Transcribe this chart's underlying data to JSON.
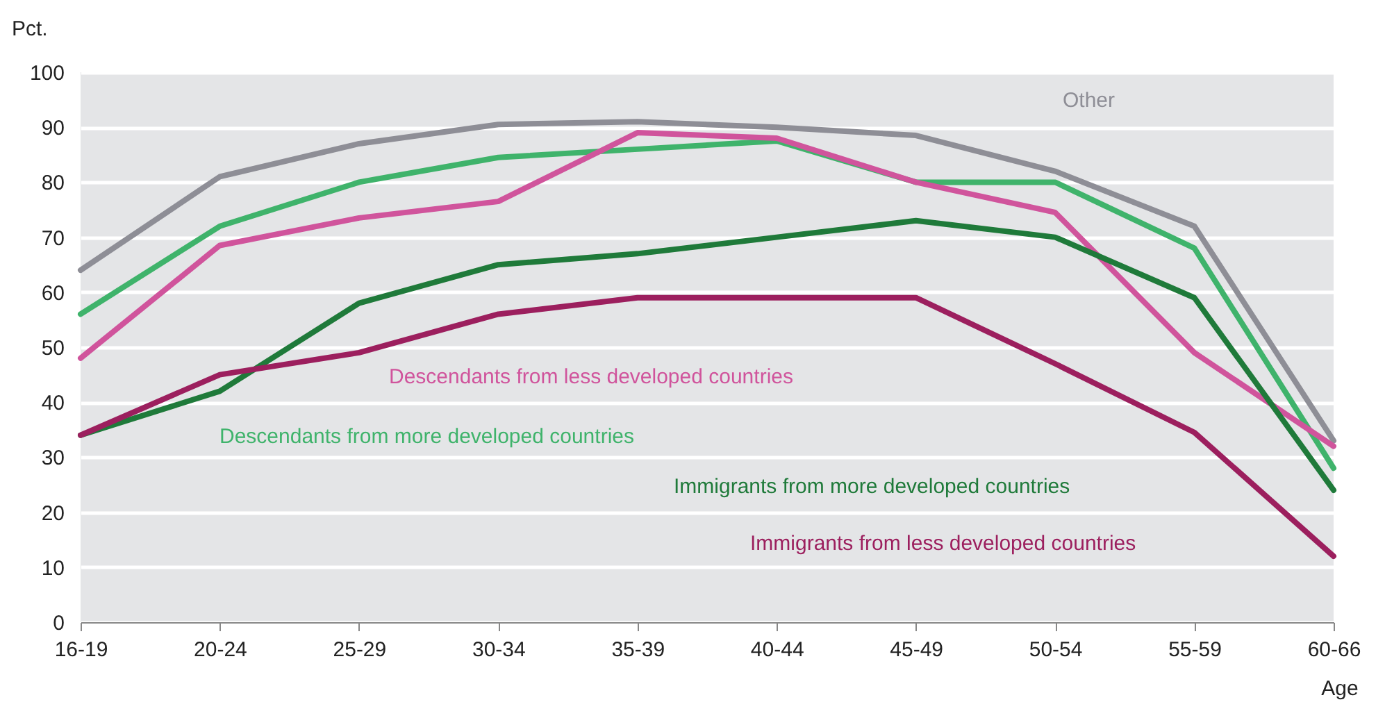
{
  "chart_data": {
    "type": "line",
    "ylabel": "Pct.",
    "xlabel": "Age",
    "categories": [
      "16-19",
      "20-24",
      "25-29",
      "30-34",
      "35-39",
      "40-44",
      "45-49",
      "50-54",
      "55-59",
      "60-66"
    ],
    "ylim": [
      0,
      100
    ],
    "yticks": [
      0,
      10,
      20,
      30,
      40,
      50,
      60,
      70,
      80,
      90,
      100
    ],
    "grid": "y",
    "legend": false,
    "marker": "none",
    "line_style": "solid",
    "series": [
      {
        "name": "Other",
        "color": "#8e8e96",
        "values": [
          64,
          81,
          87,
          90.5,
          91,
          90,
          88.5,
          82,
          72,
          33
        ]
      },
      {
        "name": "Descendants from more developed countries",
        "color": "#3fb36b",
        "values": [
          56,
          72,
          80,
          84.5,
          86,
          87.5,
          80,
          80,
          68,
          28
        ]
      },
      {
        "name": "Descendants from less developed countries",
        "color": "#d0549c",
        "values": [
          48,
          68.5,
          73.5,
          76.5,
          89,
          88,
          80,
          74.5,
          49,
          32
        ]
      },
      {
        "name": "Immigrants from more developed countries",
        "color": "#1f7a3a",
        "values": [
          34,
          42,
          58,
          65,
          67,
          70,
          73,
          70,
          59,
          24
        ]
      },
      {
        "name": "Immigrants from less developed countries",
        "color": "#9c1f5e",
        "values": [
          34,
          45,
          49,
          56,
          59,
          59,
          59,
          47,
          34.5,
          12
        ]
      }
    ]
  }
}
